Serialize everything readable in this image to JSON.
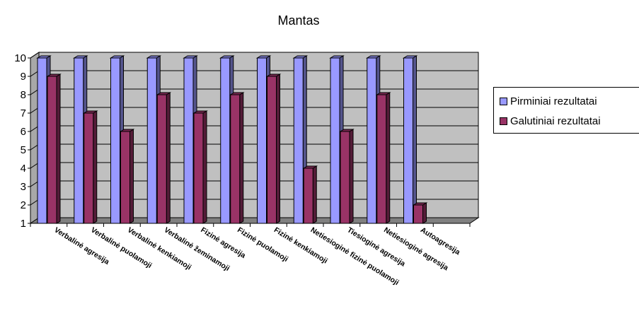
{
  "chart_data": {
    "type": "bar",
    "title": "Mantas",
    "categories": [
      "Verbalinė agresija",
      "Verbalinė puolamoji",
      "Verbalinė kenkiamoji",
      "Verbalinė žeminamoji",
      "Fizinė agresija",
      "Fizinė puolamoji",
      "Fizinė kenkiamoji",
      "Netiesioginė fizinė puolamoji",
      "Tiesioginė agresija",
      "Netiesioginė agresija",
      "Autoagresija"
    ],
    "series": [
      {
        "name": "Pirminiai rezultatai",
        "color": "#9999ff",
        "values": [
          10,
          10,
          10,
          10,
          10,
          10,
          10,
          10,
          10,
          10,
          10
        ]
      },
      {
        "name": "Galutiniai rezultatai",
        "color": "#993366",
        "values": [
          9,
          7,
          6,
          8,
          7,
          8,
          9,
          4,
          6,
          8,
          2
        ]
      }
    ],
    "ylim": [
      1,
      10
    ],
    "yticks": [
      "1",
      "2",
      "3",
      "4",
      "5",
      "6",
      "7",
      "8",
      "9",
      "10"
    ],
    "grid": true,
    "legend": "right",
    "wall_color": "#c0c0c0"
  }
}
